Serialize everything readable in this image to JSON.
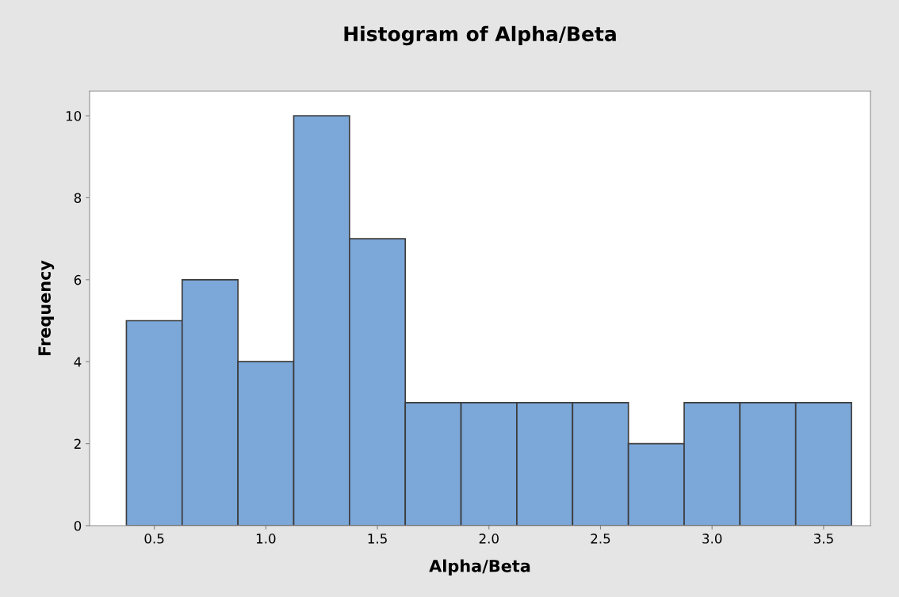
{
  "chart_data": {
    "type": "histogram",
    "title": "Histogram of Alpha/Beta",
    "xlabel": "Alpha/Beta",
    "ylabel": "Frequency",
    "bins": [
      0.375,
      0.625,
      0.875,
      1.125,
      1.375,
      1.625,
      1.875,
      2.125,
      2.375,
      2.625,
      2.875,
      3.125,
      3.375,
      3.625
    ],
    "values": [
      5,
      6,
      4,
      10,
      7,
      3,
      3,
      3,
      3,
      2,
      3,
      3,
      3
    ],
    "color": "#7ba7d9",
    "xlim": [
      0.21,
      3.71
    ],
    "ylim": [
      0,
      10.6
    ],
    "xticks": [
      0.5,
      {
        "value": 1.0,
        "label": "1.0"
      },
      1.5,
      {
        "value": 2.0,
        "label": "2.0"
      },
      2.5,
      {
        "value": 3.0,
        "label": "3.0"
      },
      3.5
    ],
    "yticks": [
      0,
      2,
      4,
      6,
      8,
      {
        "value": 10,
        "label": "10"
      }
    ],
    "grid": false,
    "legend": false
  }
}
